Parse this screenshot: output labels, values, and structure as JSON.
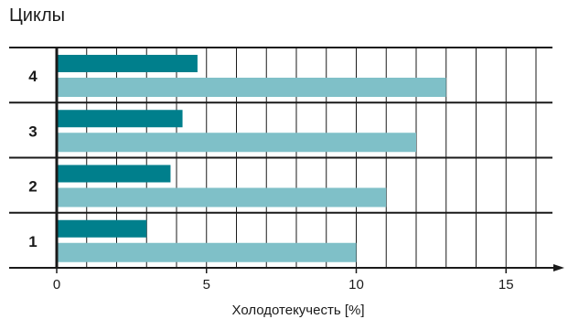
{
  "chart_data": {
    "type": "bar",
    "orientation": "horizontal",
    "title": "Циклы",
    "xlabel": "Холодотекучесть [%]",
    "xlim": [
      0,
      17
    ],
    "xticks": [
      0,
      5,
      10,
      15
    ],
    "grid": true,
    "categories": [
      "4",
      "3",
      "2",
      "1"
    ],
    "series": [
      {
        "values": [
          4.7,
          4.2,
          3.8,
          3.0
        ],
        "color": "#007f8c"
      },
      {
        "values": [
          13.0,
          12.0,
          11.0,
          10.0
        ],
        "color": "#7fc0c8"
      }
    ]
  }
}
